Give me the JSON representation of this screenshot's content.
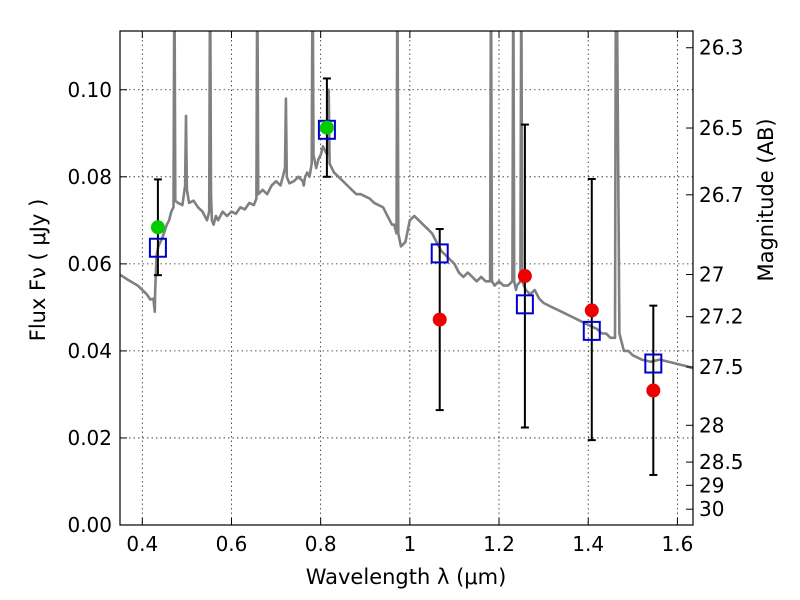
{
  "chart_data": {
    "type": "scatter",
    "xlabel": "Wavelength  λ (μm)",
    "ylabel": "Flux  Fν  ( μJy )",
    "y2label": "Magnitude (AB)",
    "xlim": [
      0.35,
      1.635
    ],
    "ylim": [
      0.0,
      0.1135
    ],
    "grid": true,
    "x_ticks": [
      0.4,
      0.6,
      0.8,
      1.0,
      1.2,
      1.4,
      1.6
    ],
    "x_tick_labels": [
      "0.4",
      "0.6",
      "0.8",
      "1",
      "1.2",
      "1.4",
      "1.6"
    ],
    "y_ticks": [
      0.0,
      0.02,
      0.04,
      0.06,
      0.08,
      0.1
    ],
    "y_tick_labels": [
      "0.00",
      "0.02",
      "0.04",
      "0.06",
      "0.08",
      "0.10"
    ],
    "y2_ticks": [
      26.3,
      26.5,
      26.7,
      27,
      27.2,
      27.5,
      28,
      28.5,
      29,
      30
    ],
    "y2_tick_labels": [
      "26.3",
      "26.5",
      "26.7",
      "27",
      "27.2",
      "27.5",
      "28",
      "28.5",
      "29",
      "30"
    ],
    "series": [
      {
        "type": "errorbar",
        "color": "#000000",
        "points": [
          {
            "x": 0.435,
            "y": 0.0684,
            "lo": 0.0574,
            "hi": 0.0794
          },
          {
            "x": 0.814,
            "y": 0.0913,
            "lo": 0.08,
            "hi": 0.1026
          },
          {
            "x": 1.067,
            "y": 0.0472,
            "lo": 0.0264,
            "hi": 0.068
          },
          {
            "x": 1.258,
            "y": 0.0572,
            "lo": 0.0224,
            "hi": 0.092
          },
          {
            "x": 1.408,
            "y": 0.0493,
            "lo": 0.0195,
            "hi": 0.0795
          },
          {
            "x": 1.546,
            "y": 0.0309,
            "lo": 0.0115,
            "hi": 0.0504
          }
        ]
      },
      {
        "type": "scatter",
        "marker": "square-open",
        "color": "#0000cc",
        "points": [
          {
            "x": 0.435,
            "y": 0.0637
          },
          {
            "x": 0.814,
            "y": 0.0908
          },
          {
            "x": 1.067,
            "y": 0.0624
          },
          {
            "x": 1.258,
            "y": 0.0507
          },
          {
            "x": 1.408,
            "y": 0.0446
          },
          {
            "x": 1.546,
            "y": 0.0371
          }
        ]
      },
      {
        "type": "scatter",
        "marker": "circle",
        "color": "#00cc00",
        "points": [
          {
            "x": 0.435,
            "y": 0.0684
          },
          {
            "x": 0.814,
            "y": 0.0913
          }
        ]
      },
      {
        "type": "scatter",
        "marker": "circle",
        "color": "#ee0000",
        "points": [
          {
            "x": 1.067,
            "y": 0.0472
          },
          {
            "x": 1.258,
            "y": 0.0572
          },
          {
            "x": 1.408,
            "y": 0.0493
          },
          {
            "x": 1.546,
            "y": 0.0309
          }
        ]
      },
      {
        "type": "line",
        "color": "#808080",
        "points": [
          [
            0.35,
            0.0575
          ],
          [
            0.37,
            0.0562
          ],
          [
            0.39,
            0.055
          ],
          [
            0.41,
            0.053
          ],
          [
            0.418,
            0.0518
          ],
          [
            0.425,
            0.052
          ],
          [
            0.428,
            0.049
          ],
          [
            0.429,
            0.054
          ],
          [
            0.432,
            0.062
          ],
          [
            0.436,
            0.064
          ],
          [
            0.445,
            0.066
          ],
          [
            0.455,
            0.069
          ],
          [
            0.46,
            0.07
          ],
          [
            0.465,
            0.072
          ],
          [
            0.47,
            0.073
          ],
          [
            0.472,
            0.13
          ],
          [
            0.474,
            0.0745
          ],
          [
            0.48,
            0.074
          ],
          [
            0.49,
            0.0735
          ],
          [
            0.496,
            0.078
          ],
          [
            0.498,
            0.094
          ],
          [
            0.5,
            0.077
          ],
          [
            0.505,
            0.074
          ],
          [
            0.515,
            0.0745
          ],
          [
            0.525,
            0.073
          ],
          [
            0.535,
            0.072
          ],
          [
            0.545,
            0.07
          ],
          [
            0.55,
            0.072
          ],
          [
            0.552,
            0.13
          ],
          [
            0.554,
            0.076
          ],
          [
            0.556,
            0.07
          ],
          [
            0.56,
            0.069
          ],
          [
            0.565,
            0.071
          ],
          [
            0.57,
            0.07
          ],
          [
            0.58,
            0.072
          ],
          [
            0.59,
            0.071
          ],
          [
            0.6,
            0.072
          ],
          [
            0.61,
            0.0715
          ],
          [
            0.62,
            0.073
          ],
          [
            0.63,
            0.0725
          ],
          [
            0.64,
            0.074
          ],
          [
            0.65,
            0.0735
          ],
          [
            0.656,
            0.075
          ],
          [
            0.658,
            0.13
          ],
          [
            0.66,
            0.076
          ],
          [
            0.67,
            0.077
          ],
          [
            0.68,
            0.076
          ],
          [
            0.69,
            0.078
          ],
          [
            0.7,
            0.079
          ],
          [
            0.71,
            0.078
          ],
          [
            0.715,
            0.08
          ],
          [
            0.72,
            0.082
          ],
          [
            0.722,
            0.098
          ],
          [
            0.724,
            0.08
          ],
          [
            0.73,
            0.0785
          ],
          [
            0.74,
            0.079
          ],
          [
            0.75,
            0.08
          ],
          [
            0.76,
            0.079
          ],
          [
            0.762,
            0.078
          ],
          [
            0.765,
            0.08
          ],
          [
            0.77,
            0.081
          ],
          [
            0.775,
            0.08
          ],
          [
            0.78,
            0.083
          ],
          [
            0.782,
            0.13
          ],
          [
            0.784,
            0.085
          ],
          [
            0.79,
            0.082
          ],
          [
            0.795,
            0.084
          ],
          [
            0.8,
            0.085
          ],
          [
            0.805,
            0.087
          ],
          [
            0.81,
            0.086
          ],
          [
            0.815,
            0.085
          ],
          [
            0.818,
            0.1
          ],
          [
            0.82,
            0.083
          ],
          [
            0.83,
            0.081
          ],
          [
            0.84,
            0.08
          ],
          [
            0.85,
            0.079
          ],
          [
            0.86,
            0.078
          ],
          [
            0.87,
            0.077
          ],
          [
            0.88,
            0.076
          ],
          [
            0.89,
            0.076
          ],
          [
            0.9,
            0.0755
          ],
          [
            0.91,
            0.075
          ],
          [
            0.92,
            0.074
          ],
          [
            0.93,
            0.0735
          ],
          [
            0.94,
            0.073
          ],
          [
            0.95,
            0.071
          ],
          [
            0.96,
            0.069
          ],
          [
            0.965,
            0.069
          ],
          [
            0.97,
            0.067
          ],
          [
            0.972,
            0.13
          ],
          [
            0.974,
            0.067
          ],
          [
            0.98,
            0.064
          ],
          [
            0.99,
            0.065
          ],
          [
            1.0,
            0.07
          ],
          [
            1.01,
            0.071
          ],
          [
            1.02,
            0.07
          ],
          [
            1.03,
            0.069
          ],
          [
            1.04,
            0.068
          ],
          [
            1.05,
            0.067
          ],
          [
            1.06,
            0.065
          ],
          [
            1.07,
            0.063
          ],
          [
            1.08,
            0.062
          ],
          [
            1.09,
            0.061
          ],
          [
            1.1,
            0.06
          ],
          [
            1.11,
            0.058
          ],
          [
            1.12,
            0.057
          ],
          [
            1.13,
            0.058
          ],
          [
            1.14,
            0.057
          ],
          [
            1.15,
            0.056
          ],
          [
            1.16,
            0.057
          ],
          [
            1.17,
            0.056
          ],
          [
            1.18,
            0.056
          ],
          [
            1.182,
            0.13
          ],
          [
            1.184,
            0.056
          ],
          [
            1.19,
            0.055
          ],
          [
            1.2,
            0.056
          ],
          [
            1.21,
            0.055
          ],
          [
            1.22,
            0.055
          ],
          [
            1.23,
            0.056
          ],
          [
            1.232,
            0.13
          ],
          [
            1.234,
            0.056
          ],
          [
            1.238,
            0.054
          ],
          [
            1.24,
            0.055
          ],
          [
            1.248,
            0.056
          ],
          [
            1.25,
            0.13
          ],
          [
            1.252,
            0.056
          ],
          [
            1.26,
            0.054
          ],
          [
            1.27,
            0.053
          ],
          [
            1.28,
            0.054
          ],
          [
            1.29,
            0.052
          ],
          [
            1.3,
            0.051
          ],
          [
            1.32,
            0.05
          ],
          [
            1.34,
            0.049
          ],
          [
            1.36,
            0.048
          ],
          [
            1.38,
            0.047
          ],
          [
            1.4,
            0.046
          ],
          [
            1.42,
            0.045
          ],
          [
            1.43,
            0.044
          ],
          [
            1.44,
            0.044
          ],
          [
            1.45,
            0.043
          ],
          [
            1.46,
            0.043
          ],
          [
            1.462,
            0.13
          ],
          [
            1.464,
            0.13
          ],
          [
            1.47,
            0.044
          ],
          [
            1.48,
            0.04
          ],
          [
            1.49,
            0.04
          ],
          [
            1.5,
            0.039
          ],
          [
            1.52,
            0.038
          ],
          [
            1.54,
            0.0375
          ],
          [
            1.56,
            0.038
          ],
          [
            1.58,
            0.0375
          ],
          [
            1.6,
            0.037
          ],
          [
            1.62,
            0.0365
          ],
          [
            1.635,
            0.036
          ]
        ]
      }
    ]
  }
}
